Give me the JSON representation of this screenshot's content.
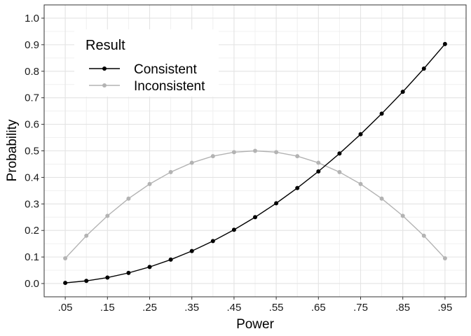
{
  "chart_data": {
    "type": "line",
    "xlabel": "Power",
    "ylabel": "Probability",
    "xlim": [
      0,
      1
    ],
    "ylim": [
      -0.05,
      1.05
    ],
    "x": [
      0.05,
      0.1,
      0.15,
      0.2,
      0.25,
      0.3,
      0.35,
      0.4,
      0.45,
      0.5,
      0.55,
      0.6,
      0.65,
      0.7,
      0.75,
      0.8,
      0.85,
      0.9,
      0.95
    ],
    "x_ticks": [
      0.05,
      0.15,
      0.25,
      0.35,
      0.45,
      0.55,
      0.65,
      0.75,
      0.85,
      0.95
    ],
    "x_tick_labels": [
      ".05",
      ".15",
      ".25",
      ".35",
      ".45",
      ".55",
      ".65",
      ".75",
      ".85",
      ".95"
    ],
    "x_minor_ticks": [
      0.1,
      0.2,
      0.3,
      0.4,
      0.5,
      0.6,
      0.7,
      0.8,
      0.9
    ],
    "y_ticks": [
      0.0,
      0.1,
      0.2,
      0.3,
      0.4,
      0.5,
      0.6,
      0.7,
      0.8,
      0.9,
      1.0
    ],
    "y_tick_labels": [
      "0.0",
      "0.1",
      "0.2",
      "0.3",
      "0.4",
      "0.5",
      "0.6",
      "0.7",
      "0.8",
      "0.9",
      "1.0"
    ],
    "grid": true,
    "legend": {
      "title": "Result",
      "placement": "top-left"
    },
    "series": [
      {
        "name": "Consistent",
        "color": "#000000",
        "values": [
          0.0025,
          0.01,
          0.0225,
          0.04,
          0.0625,
          0.09,
          0.1225,
          0.16,
          0.2025,
          0.25,
          0.3025,
          0.36,
          0.4225,
          0.49,
          0.5625,
          0.64,
          0.7225,
          0.81,
          0.9025
        ]
      },
      {
        "name": "Inconsistent",
        "color": "#b3b3b3",
        "values": [
          0.095,
          0.18,
          0.255,
          0.32,
          0.375,
          0.42,
          0.455,
          0.48,
          0.495,
          0.5,
          0.495,
          0.48,
          0.455,
          0.42,
          0.375,
          0.32,
          0.255,
          0.18,
          0.095
        ]
      }
    ]
  }
}
